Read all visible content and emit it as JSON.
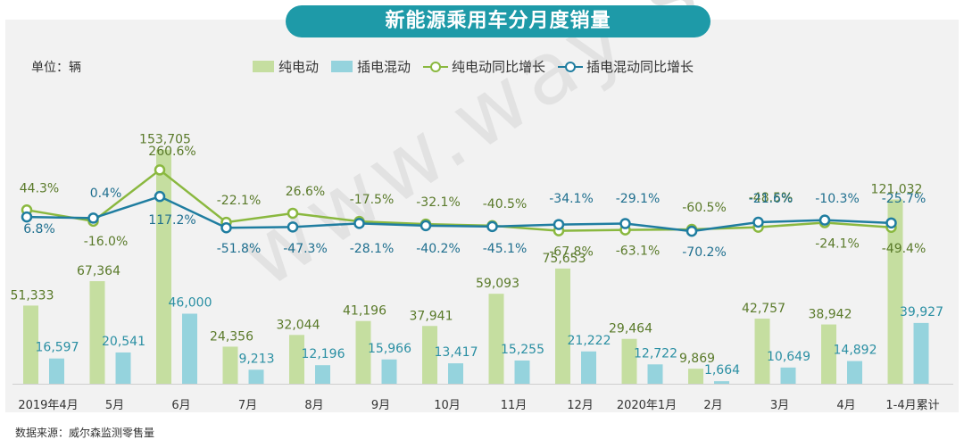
{
  "header": {
    "title": "新能源乘用车分月度销量"
  },
  "unit_label": "单位：辆",
  "watermark": "www.way-s.cn",
  "source": "数据来源：威尔森监测零售量",
  "colors": {
    "bev_bar": "#c5dea0",
    "phev_bar": "#95d3dd",
    "bev_line": "#8ab83f",
    "phev_line": "#1f7da0",
    "title_bg": "#1e9aa8"
  },
  "chart_data": {
    "type": "bar",
    "categories": [
      "2019年4月",
      "5月",
      "6月",
      "7月",
      "8月",
      "9月",
      "10月",
      "11月",
      "12月",
      "2020年1月",
      "2月",
      "3月",
      "4月",
      "1-4月累计"
    ],
    "ylim": [
      0,
      160000
    ],
    "series": [
      {
        "name": "纯电动",
        "type": "bar",
        "values": [
          51333,
          67364,
          153705,
          24356,
          32044,
          41196,
          37941,
          59093,
          75653,
          29464,
          9869,
          42757,
          38942,
          121032
        ],
        "labels": [
          "51,333",
          "67,364",
          "153,705",
          "24,356",
          "32,044",
          "41,196",
          "37,941",
          "59,093",
          "75,653",
          "29,464",
          "9,869",
          "42,757",
          "38,942",
          "121,032"
        ]
      },
      {
        "name": "插电混动",
        "type": "bar",
        "values": [
          16597,
          20541,
          46000,
          9213,
          12196,
          15966,
          13417,
          15255,
          21222,
          12722,
          1664,
          10649,
          14892,
          39927
        ],
        "labels": [
          "16,597",
          "20,541",
          "46,000",
          "9,213",
          "12,196",
          "15,966",
          "13,417",
          "15,255",
          "21,222",
          "12,722",
          "1,664",
          "10,649",
          "14,892",
          "39,927"
        ]
      },
      {
        "name": "纯电动同比增长",
        "type": "line",
        "values": [
          44.3,
          -16.0,
          260.6,
          -22.1,
          26.6,
          -17.5,
          -32.1,
          -40.5,
          -67.8,
          -63.1,
          -60.5,
          -48.5,
          -24.1,
          -49.4
        ],
        "labels": [
          "44.3%",
          "-16.0%",
          "260.6%",
          "-22.1%",
          "26.6%",
          "-17.5%",
          "-32.1%",
          "-40.5%",
          "-67.8%",
          "-63.1%",
          "-60.5%",
          "-48.5%",
          "-24.1%",
          "-49.4%"
        ]
      },
      {
        "name": "插电混动同比增长",
        "type": "line",
        "values": [
          6.8,
          0.4,
          117.2,
          -51.8,
          -47.3,
          -28.1,
          -40.2,
          -45.1,
          -34.1,
          -29.1,
          -70.2,
          -21.6,
          -10.3,
          -25.7
        ],
        "labels": [
          "6.8%",
          "0.4%",
          "117.2%",
          "-51.8%",
          "-47.3%",
          "-28.1%",
          "-40.2%",
          "-45.1%",
          "-34.1%",
          "-29.1%",
          "-70.2%",
          "-21.6%",
          "-10.3%",
          "-25.7%"
        ]
      }
    ]
  }
}
